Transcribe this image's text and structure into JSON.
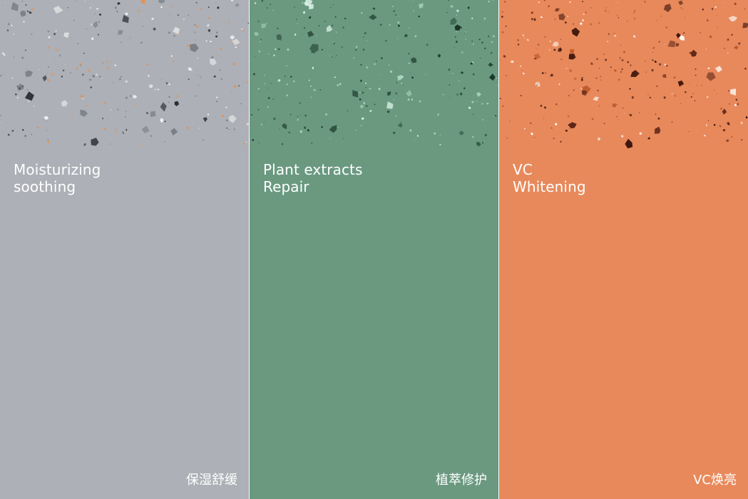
{
  "panels": [
    {
      "title_line1": "Moisturizing",
      "title_line2": "soothing",
      "cn_label": "保湿舒缓",
      "background": "#adb0b6",
      "speckle_colors": [
        "#2b2d31",
        "#f08a3c",
        "#f2f2f2",
        "#7a7d84"
      ]
    },
    {
      "title_line1": "Plant extracts",
      "title_line2": "Repair",
      "cn_label": "植萃修护",
      "background": "#6a9980",
      "speckle_colors": [
        "#0f2a1d",
        "#a9d7bf",
        "#2a4d3a",
        "#d7efe3"
      ]
    },
    {
      "title_line1": "VC",
      "title_line2": "Whitening",
      "cn_label": "VC焕亮",
      "background": "#e8895b",
      "speckle_colors": [
        "#3a140a",
        "#ffffff",
        "#b85626",
        "#5b2416"
      ]
    }
  ]
}
